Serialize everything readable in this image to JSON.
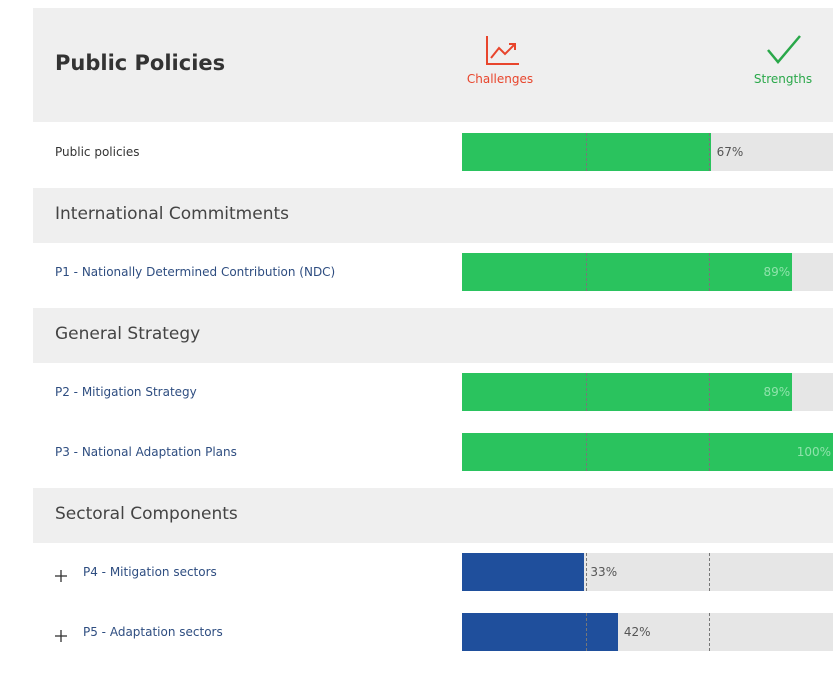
{
  "header": {
    "title": "Public Policies",
    "legend": [
      {
        "label": "Challenges",
        "color": "#e8452c"
      },
      {
        "label": "Strengths",
        "color": "#2aa84a"
      }
    ]
  },
  "overall": {
    "label": "Public policies",
    "value": 67,
    "value_label": "67%",
    "color": "#2ac35e"
  },
  "sections": [
    {
      "title": "International Commitments",
      "items": [
        {
          "label": "P1 - Nationally Determined Contribution (NDC)",
          "value": 89,
          "value_label": "89%",
          "color": "#2ac35e",
          "expandable": false
        }
      ]
    },
    {
      "title": "General Strategy",
      "items": [
        {
          "label": "P2 - Mitigation Strategy",
          "value": 89,
          "value_label": "89%",
          "color": "#2ac35e",
          "expandable": false
        },
        {
          "label": "P3 - National Adaptation Plans",
          "value": 100,
          "value_label": "100%",
          "color": "#2ac35e",
          "expandable": false
        }
      ]
    },
    {
      "title": "Sectoral Components",
      "items": [
        {
          "label": "P4 - Mitigation sectors",
          "value": 33,
          "value_label": "33%",
          "color": "#1f4f9c",
          "expandable": true
        },
        {
          "label": "P5 - Adaptation sectors",
          "value": 42,
          "value_label": "42%",
          "color": "#1f4f9c",
          "expandable": true
        }
      ]
    }
  ]
}
